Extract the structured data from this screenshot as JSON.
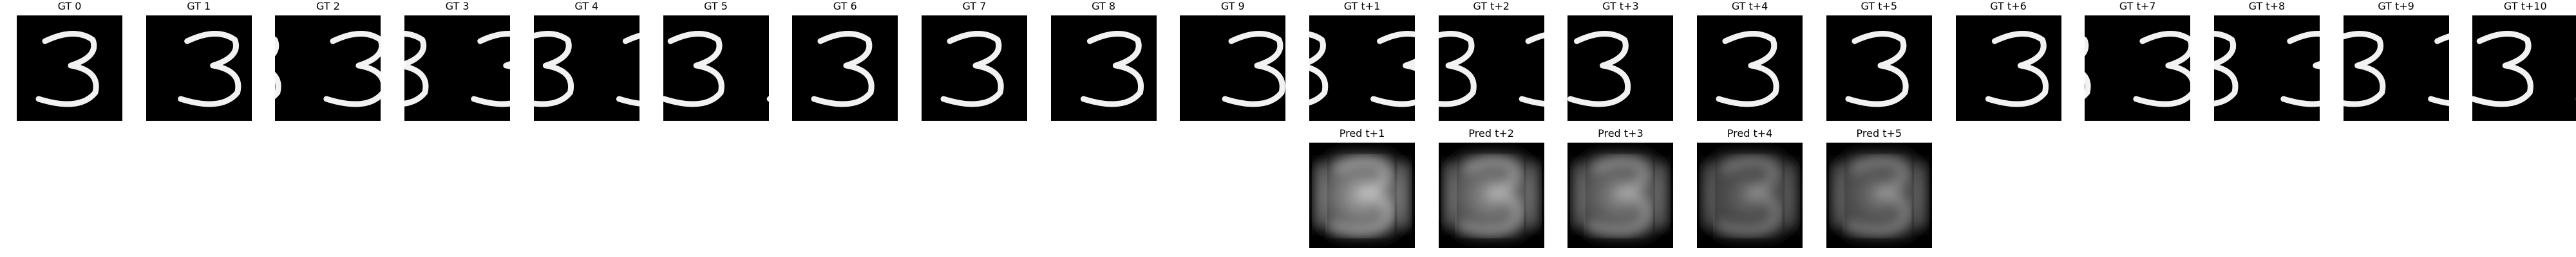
{
  "background": "#ffffff",
  "digit": "3",
  "gt_frames": [
    {
      "label": "GT 0",
      "shift": 0.0,
      "wrap": false
    },
    {
      "label": "GT 1",
      "shift": 0.12,
      "wrap": true
    },
    {
      "label": "GT 2",
      "shift": 0.28,
      "wrap": true
    },
    {
      "label": "GT 3",
      "shift": 0.45,
      "wrap": true
    },
    {
      "label": "GT 4",
      "shift": 0.6,
      "wrap": true
    },
    {
      "label": "GT 5",
      "shift": 0.8,
      "wrap": true
    },
    {
      "label": "GT 6",
      "shift": 0.0,
      "wrap": false
    },
    {
      "label": "GT 7",
      "shift": 0.0,
      "wrap": false
    },
    {
      "label": "GT 8",
      "shift": 0.1,
      "wrap": true
    },
    {
      "label": "GT 9",
      "shift": 0.22,
      "wrap": true
    },
    {
      "label": "GT t+1",
      "shift": 0.4,
      "wrap": true
    },
    {
      "label": "GT t+2",
      "shift": 0.58,
      "wrap": true
    },
    {
      "label": "GT t+3",
      "shift": 0.82,
      "wrap": true
    },
    {
      "label": "GT t+4",
      "shift": 0.0,
      "wrap": false
    },
    {
      "label": "GT t+5",
      "shift": 0.0,
      "wrap": false
    },
    {
      "label": "GT t+6",
      "shift": 0.1,
      "wrap": true
    },
    {
      "label": "GT t+7",
      "shift": 0.28,
      "wrap": true
    },
    {
      "label": "GT t+8",
      "shift": 0.45,
      "wrap": true
    },
    {
      "label": "GT t+9",
      "shift": 0.62,
      "wrap": true
    },
    {
      "label": "GT t+10",
      "shift": 0.8,
      "wrap": true
    }
  ],
  "pred_frames": [
    {
      "label": "Pred t+1",
      "column": 10,
      "blur": 0.85
    },
    {
      "label": "Pred t+2",
      "column": 11,
      "blur": 0.75
    },
    {
      "label": "Pred t+3",
      "column": 12,
      "blur": 0.7
    },
    {
      "label": "Pred t+4",
      "column": 13,
      "blur": 0.55
    },
    {
      "label": "Pred t+5",
      "column": 14,
      "blur": 0.6
    }
  ]
}
